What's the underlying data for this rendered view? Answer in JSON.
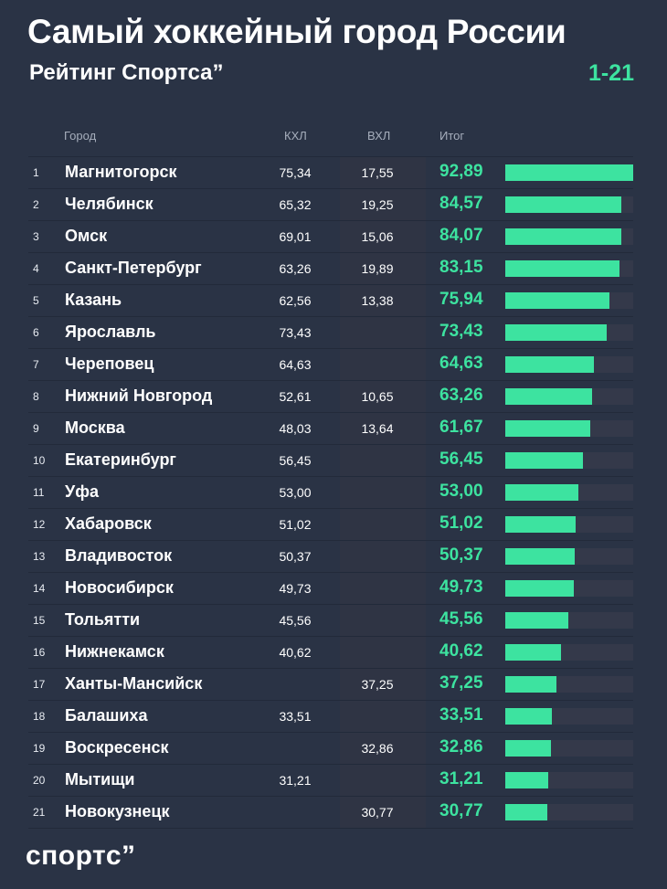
{
  "header": {
    "title": "Самый хоккейный город России",
    "subtitle": "Рейтинг Спортса”",
    "range": "1-21"
  },
  "columns": {
    "city": "Город",
    "khl": "КХЛ",
    "vhl": "ВХЛ",
    "total": "Итог"
  },
  "rows": [
    {
      "rank": "1",
      "city": "Магнитогорск",
      "khl": "75,34",
      "vhl": "17,55",
      "total": "92,89"
    },
    {
      "rank": "2",
      "city": "Челябинск",
      "khl": "65,32",
      "vhl": "19,25",
      "total": "84,57"
    },
    {
      "rank": "3",
      "city": "Омск",
      "khl": "69,01",
      "vhl": "15,06",
      "total": "84,07"
    },
    {
      "rank": "4",
      "city": "Санкт-Петербург",
      "khl": "63,26",
      "vhl": "19,89",
      "total": "83,15"
    },
    {
      "rank": "5",
      "city": "Казань",
      "khl": "62,56",
      "vhl": "13,38",
      "total": "75,94"
    },
    {
      "rank": "6",
      "city": "Ярославль",
      "khl": "73,43",
      "vhl": "",
      "total": "73,43"
    },
    {
      "rank": "7",
      "city": "Череповец",
      "khl": "64,63",
      "vhl": "",
      "total": "64,63"
    },
    {
      "rank": "8",
      "city": "Нижний Новгород",
      "khl": "52,61",
      "vhl": "10,65",
      "total": "63,26"
    },
    {
      "rank": "9",
      "city": "Москва",
      "khl": "48,03",
      "vhl": "13,64",
      "total": "61,67"
    },
    {
      "rank": "10",
      "city": "Екатеринбург",
      "khl": "56,45",
      "vhl": "",
      "total": "56,45"
    },
    {
      "rank": "11",
      "city": "Уфа",
      "khl": "53,00",
      "vhl": "",
      "total": "53,00"
    },
    {
      "rank": "12",
      "city": "Хабаровск",
      "khl": "51,02",
      "vhl": "",
      "total": "51,02"
    },
    {
      "rank": "13",
      "city": "Владивосток",
      "khl": "50,37",
      "vhl": "",
      "total": "50,37"
    },
    {
      "rank": "14",
      "city": "Новосибирск",
      "khl": "49,73",
      "vhl": "",
      "total": "49,73"
    },
    {
      "rank": "15",
      "city": "Тольятти",
      "khl": "45,56",
      "vhl": "",
      "total": "45,56"
    },
    {
      "rank": "16",
      "city": "Нижнекамск",
      "khl": "40,62",
      "vhl": "",
      "total": "40,62"
    },
    {
      "rank": "17",
      "city": "Ханты-Мансийск",
      "khl": "",
      "vhl": "37,25",
      "total": "37,25"
    },
    {
      "rank": "18",
      "city": "Балашиха",
      "khl": "33,51",
      "vhl": "",
      "total": "33,51"
    },
    {
      "rank": "19",
      "city": "Воскресенск",
      "khl": "",
      "vhl": "32,86",
      "total": "32,86"
    },
    {
      "rank": "20",
      "city": "Мытищи",
      "khl": "31,21",
      "vhl": "",
      "total": "31,21"
    },
    {
      "rank": "21",
      "city": "Новокузнецк",
      "khl": "",
      "vhl": "30,77",
      "total": "30,77"
    }
  ],
  "footer": {
    "logo": "спортс”"
  },
  "colors": {
    "background": "#2a3345",
    "accent": "#3de3a0",
    "bar_track": "#34394a"
  },
  "chart_data": {
    "type": "bar",
    "title": "Самый хоккейный город России",
    "subtitle": "Рейтинг Спортса”",
    "xlabel": "Итог",
    "ylabel": "Город",
    "xlim": [
      0,
      92.89
    ],
    "categories": [
      "Магнитогорск",
      "Челябинск",
      "Омск",
      "Санкт-Петербург",
      "Казань",
      "Ярославль",
      "Череповец",
      "Нижний Новгород",
      "Москва",
      "Екатеринбург",
      "Уфа",
      "Хабаровск",
      "Владивосток",
      "Новосибирск",
      "Тольятти",
      "Нижнекамск",
      "Ханты-Мансийск",
      "Балашиха",
      "Воскресенск",
      "Мытищи",
      "Новокузнецк"
    ],
    "values": [
      92.89,
      84.57,
      84.07,
      83.15,
      75.94,
      73.43,
      64.63,
      63.26,
      61.67,
      56.45,
      53.0,
      51.02,
      50.37,
      49.73,
      45.56,
      40.62,
      37.25,
      33.51,
      32.86,
      31.21,
      30.77
    ]
  }
}
